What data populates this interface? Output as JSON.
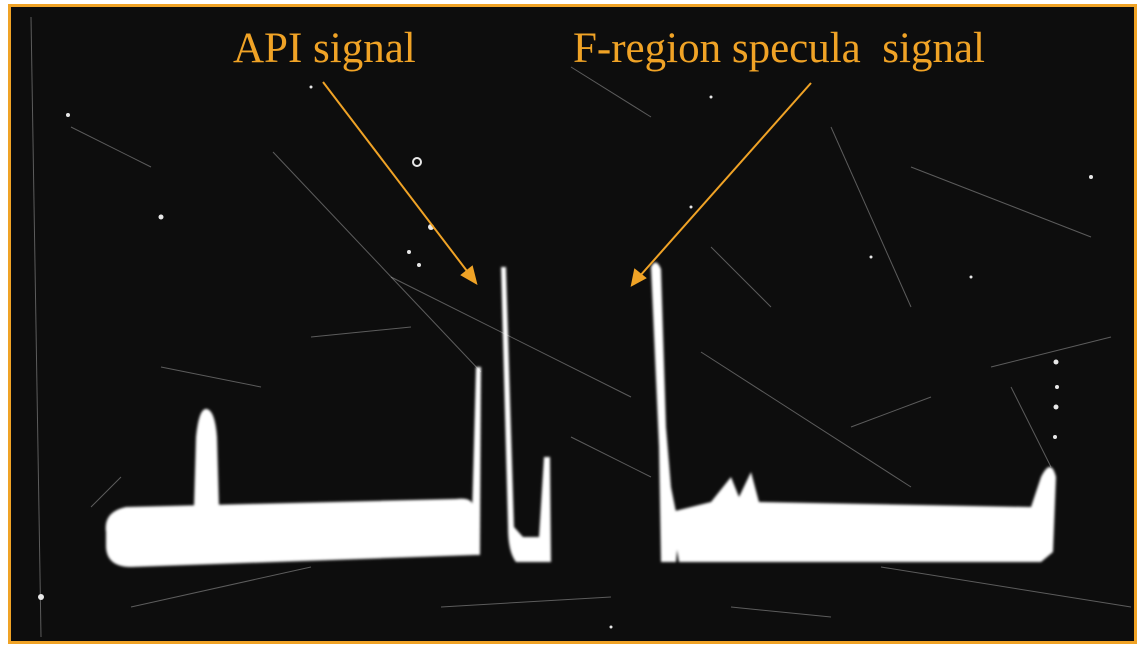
{
  "annotations": {
    "api_label": "API signal",
    "f_region_label": "F-region specula  signal",
    "color": "#f0a326"
  },
  "photo": {
    "background_color": "#0d0d0d",
    "trace_color": "#ffffff",
    "arrow_icon": "arrow-icon"
  }
}
